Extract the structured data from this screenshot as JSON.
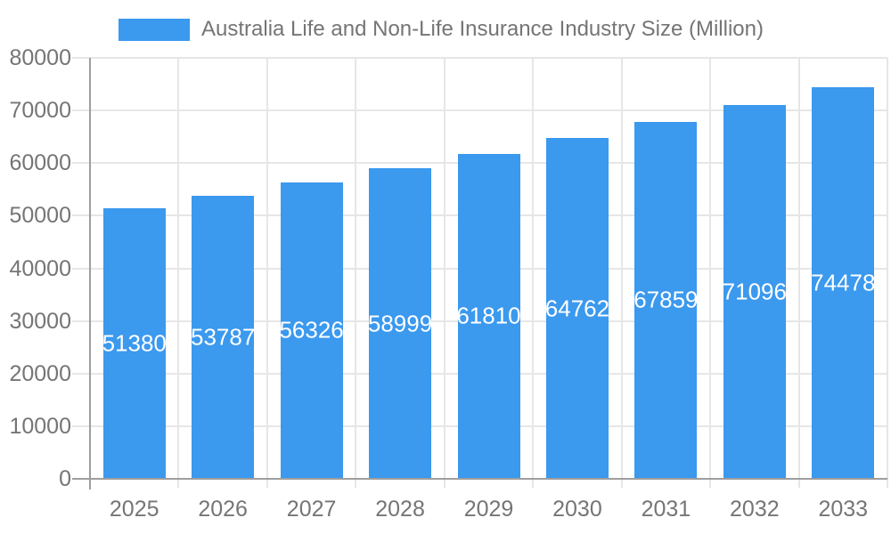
{
  "colors": {
    "bar": "#3B99EE",
    "axis_text": "#757575",
    "grid": "#E6E6E6",
    "axis_line": "#9E9E9E",
    "value_label": "#FFFFFF",
    "background": "#FFFFFF"
  },
  "legend": {
    "label": "Australia Life and Non-Life Insurance Industry Size (Million)"
  },
  "chart_data": {
    "type": "bar",
    "title": "Australia Life and Non-Life Insurance Industry Size (Million)",
    "categories": [
      "2025",
      "2026",
      "2027",
      "2028",
      "2029",
      "2030",
      "2031",
      "2032",
      "2033"
    ],
    "series": [
      {
        "name": "Australia Life and Non-Life Insurance Industry Size (Million)",
        "values": [
          51380,
          53787,
          56326,
          58999,
          61810,
          64762,
          67859,
          71096,
          74478
        ],
        "color": "#3B99EE"
      }
    ],
    "xlabel": "",
    "ylabel": "",
    "ylim": [
      0,
      80000
    ],
    "ytick_step": 10000,
    "ytick_labels": [
      "0",
      "10000",
      "20000",
      "30000",
      "40000",
      "50000",
      "60000",
      "70000",
      "80000"
    ],
    "grid": true,
    "legend_position": "top",
    "value_labels": "inside-center-white"
  }
}
